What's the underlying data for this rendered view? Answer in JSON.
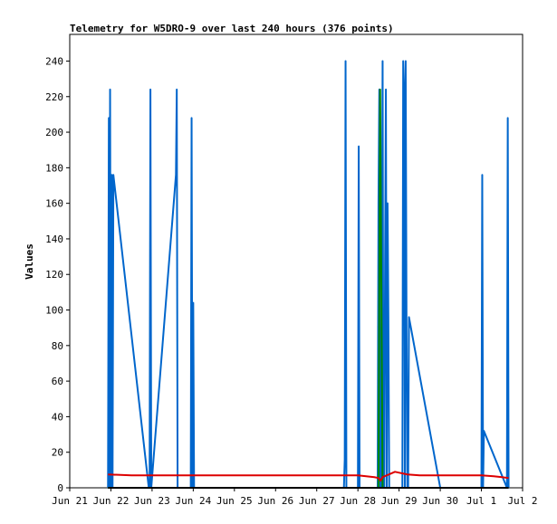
{
  "chart_data": {
    "type": "line",
    "title": "Telemetry for W5DRO-9 over last 240 hours (376 points)",
    "xlabel": "",
    "ylabel": "Values",
    "ylim": [
      0,
      255
    ],
    "yticks": [
      0,
      20,
      40,
      60,
      80,
      100,
      120,
      140,
      160,
      180,
      200,
      220,
      240
    ],
    "xlim": [
      0,
      11
    ],
    "xtick_labels": [
      "Jun 21",
      "Jun 22",
      "Jun 23",
      "Jun 24",
      "Jun 25",
      "Jun 26",
      "Jun 27",
      "Jun 28",
      "Jun 29",
      "Jun 30",
      "Jul 1",
      "Jul 2"
    ],
    "xtick_values": [
      0,
      1,
      2,
      3,
      4,
      5,
      6,
      7,
      8,
      9,
      10,
      11
    ],
    "grid": false,
    "series": [
      {
        "color": "#0066cc",
        "x": [
          0.93,
          0.95,
          0.96,
          0.98,
          1.0,
          1.02,
          1.04,
          1.06,
          1.92,
          1.94,
          1.96,
          1.98,
          2.58,
          2.6,
          2.62,
          2.64,
          2.94,
          2.96,
          2.98,
          3.0,
          3.02,
          3.04,
          6.66,
          6.68,
          6.7,
          6.72,
          7.0,
          7.02,
          7.04,
          7.06,
          7.48,
          7.5,
          7.52,
          7.54,
          7.56,
          7.58,
          7.6,
          7.62,
          7.64,
          7.66,
          7.68,
          7.7,
          7.72,
          7.74,
          7.76,
          7.78,
          8.08,
          8.1,
          8.12,
          8.14,
          8.16,
          8.18,
          8.2,
          8.22,
          8.24,
          9.0,
          9.02,
          9.04,
          9.06,
          9.08,
          9.1,
          9.12,
          9.14,
          9.16,
          9.18,
          9.2,
          9.22,
          9.24,
          9.26,
          9.28,
          9.3,
          9.32,
          9.34,
          9.36,
          9.38,
          9.4,
          9.42,
          9.44,
          9.46,
          9.48,
          9.5,
          9.52,
          9.54,
          9.56,
          9.58,
          9.6,
          9.62,
          9.64,
          9.66,
          9.68,
          9.7,
          9.72,
          9.74,
          9.76,
          9.78,
          9.8,
          9.82,
          9.84,
          9.86,
          9.88,
          9.9,
          9.92,
          9.94,
          9.96,
          9.98,
          10.0,
          10.02,
          10.04,
          10.06,
          10.62,
          10.64,
          10.66
        ],
        "y": [
          0,
          208,
          0,
          224,
          0,
          176,
          0,
          176,
          0,
          0,
          224,
          0,
          176,
          224,
          0,
          0,
          0,
          208,
          0,
          104,
          0,
          0,
          0,
          16,
          240,
          0,
          0,
          192,
          0,
          0,
          0,
          160,
          224,
          0,
          0,
          112,
          240,
          0,
          0,
          128,
          224,
          0,
          160,
          96,
          0,
          0,
          0,
          240,
          224,
          0,
          240,
          96,
          0,
          0,
          96,
          0,
          0,
          0,
          0,
          0,
          0,
          0,
          0,
          0,
          0,
          0,
          0,
          0,
          0,
          0,
          0,
          0,
          0,
          0,
          0,
          0,
          0,
          0,
          0,
          0,
          0,
          0,
          0,
          0,
          0,
          0,
          0,
          0,
          0,
          0,
          0,
          0,
          0,
          0,
          0,
          0,
          0,
          0,
          0,
          0,
          0,
          0,
          0,
          0,
          0,
          0,
          176,
          0,
          32,
          0,
          208,
          0
        ]
      },
      {
        "color": "#008800",
        "x": [
          0.93,
          1.0,
          1.5,
          2.0,
          2.5,
          3.0,
          3.5,
          4.0,
          4.5,
          5.0,
          5.5,
          6.0,
          6.5,
          7.0,
          7.5,
          7.54,
          7.6,
          8.0,
          8.5,
          9.0,
          9.5,
          10.0,
          10.5,
          10.66
        ],
        "y": [
          0,
          0,
          0,
          0,
          0,
          0,
          0,
          0,
          0,
          0,
          0,
          0,
          0,
          0,
          0,
          224,
          0,
          0,
          0,
          0,
          0,
          0,
          0,
          0
        ]
      },
      {
        "color": "#dd0000",
        "x": [
          0.93,
          1.5,
          2.0,
          2.5,
          3.0,
          3.5,
          4.0,
          4.5,
          5.0,
          5.5,
          6.0,
          6.5,
          7.0,
          7.2,
          7.4,
          7.5,
          7.55,
          7.6,
          7.7,
          7.8,
          7.9,
          8.0,
          8.1,
          8.2,
          8.5,
          9.0,
          9.5,
          10.0,
          10.3,
          10.5,
          10.66
        ],
        "y": [
          7.5,
          7,
          7,
          7,
          7,
          7,
          7,
          7,
          7,
          7,
          7,
          7,
          7,
          6.5,
          6,
          5.5,
          4,
          6,
          7,
          8,
          9,
          8.5,
          8,
          7.5,
          7,
          7,
          7,
          7,
          6.5,
          6,
          5.5
        ]
      },
      {
        "color": "#000000",
        "x": [
          0.93,
          2.0,
          4.0,
          6.0,
          8.0,
          10.0,
          10.66
        ],
        "y": [
          0,
          0,
          0,
          0,
          0,
          0,
          0
        ]
      }
    ]
  }
}
